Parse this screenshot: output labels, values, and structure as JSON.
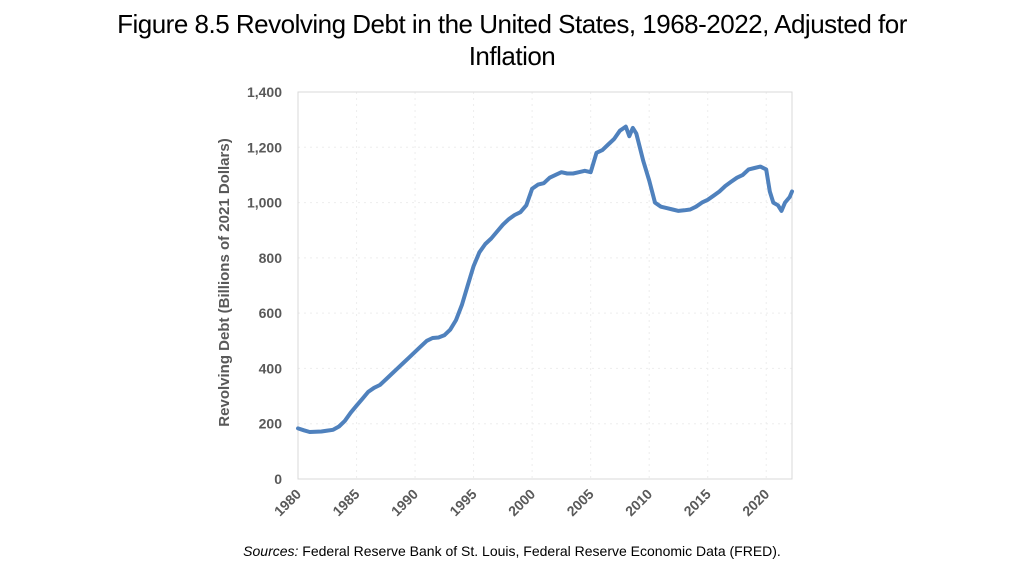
{
  "slide": {
    "title_line1": "Figure 8.5 Revolving Debt in the United States, 1968-2022, Adjusted for",
    "title_line2": "Inflation",
    "source_prefix": "Sources:",
    "source_text": "Federal Reserve Bank of St. Louis, Federal Reserve Economic Data (FRED)."
  },
  "chart_data": {
    "type": "line",
    "title": "Figure 8.5 Revolving Debt in the United States, 1968-2022, Adjusted for Inflation",
    "xlabel": "",
    "ylabel": "Revolving Debt (Billions of 2021 Dollars)",
    "xlim": [
      1980,
      2022.2
    ],
    "ylim": [
      0,
      1400
    ],
    "xticks": [
      1980,
      1985,
      1990,
      1995,
      2000,
      2005,
      2010,
      2015,
      2020
    ],
    "xtick_labels": [
      "1980",
      "1985",
      "1990",
      "1995",
      "2000",
      "2005",
      "2010",
      "2015",
      "2020"
    ],
    "yticks": [
      0,
      200,
      400,
      600,
      800,
      1000,
      1200,
      1400
    ],
    "ytick_labels": [
      "0",
      "200",
      "400",
      "600",
      "800",
      "1,000",
      "1,200",
      "1,400"
    ],
    "grid": true,
    "line_color": "#4f81bd",
    "series": [
      {
        "x": [
          1980,
          1980.5,
          1981,
          1981.5,
          1982,
          1982.5,
          1983,
          1983.5,
          1984,
          1984.5,
          1985,
          1985.5,
          1986,
          1986.5,
          1987,
          1987.5,
          1988,
          1988.5,
          1989,
          1989.5,
          1990,
          1990.5,
          1991,
          1991.5,
          1992,
          1992.5,
          1993,
          1993.5,
          1994,
          1994.5,
          1995,
          1995.5,
          1996,
          1996.5,
          1997,
          1997.5,
          1998,
          1998.5,
          1999,
          1999.5,
          2000,
          2000.5,
          2001,
          2001.5,
          2002,
          2002.5,
          2003,
          2003.5,
          2004,
          2004.5,
          2005,
          2005.5,
          2006,
          2006.5,
          2007,
          2007.5,
          2008,
          2008.3,
          2008.6,
          2008.9,
          2009.2,
          2009.5,
          2010,
          2010.5,
          2011,
          2011.5,
          2012,
          2012.5,
          2013,
          2013.5,
          2014,
          2014.5,
          2015,
          2015.5,
          2016,
          2016.5,
          2017,
          2017.5,
          2018,
          2018.5,
          2019,
          2019.5,
          2020,
          2020.3,
          2020.6,
          2021,
          2021.3,
          2021.6,
          2022,
          2022.2
        ],
        "y": [
          183,
          176,
          170,
          171,
          172,
          175,
          178,
          190,
          210,
          240,
          265,
          290,
          315,
          330,
          340,
          360,
          380,
          400,
          420,
          440,
          460,
          480,
          500,
          510,
          512,
          520,
          540,
          575,
          630,
          700,
          770,
          820,
          850,
          870,
          895,
          920,
          940,
          955,
          965,
          990,
          1050,
          1065,
          1070,
          1090,
          1100,
          1110,
          1105,
          1105,
          1110,
          1115,
          1110,
          1180,
          1190,
          1210,
          1230,
          1260,
          1275,
          1240,
          1270,
          1250,
          1200,
          1150,
          1080,
          1000,
          985,
          980,
          975,
          970,
          972,
          975,
          985,
          1000,
          1010,
          1025,
          1040,
          1060,
          1075,
          1090,
          1100,
          1120,
          1125,
          1130,
          1120,
          1040,
          1000,
          990,
          970,
          1000,
          1020,
          1040
        ]
      }
    ]
  }
}
